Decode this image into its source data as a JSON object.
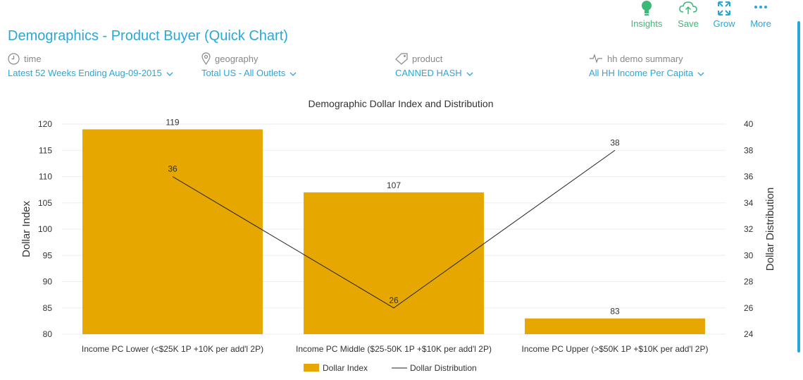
{
  "page": {
    "title": "Demographics - Product Buyer (Quick Chart)"
  },
  "toolbar": {
    "insights_label": "Insights",
    "save_label": "Save",
    "grow_label": "Grow",
    "more_label": "More"
  },
  "filters": {
    "time": {
      "caption": "time",
      "value": "Latest 52 Weeks Ending Aug-09-2015"
    },
    "geography": {
      "caption": "geography",
      "value": "Total US - All Outlets"
    },
    "product": {
      "caption": "product",
      "value": "CANNED HASH"
    },
    "demo": {
      "caption": "hh demo summary",
      "value": "All HH Income Per Capita"
    }
  },
  "colors": {
    "accent": "#29a8d8",
    "bar": "#e6a800",
    "line": "#222222",
    "toolbar_green": "#3cb878"
  },
  "chart_data": {
    "type": "bar",
    "title": "Demographic Dollar Index and Distribution",
    "categories": [
      "Income PC Lower (<$25K 1P +10K per add'l 2P)",
      "Income PC Middle ($25-50K 1P +$10K per add'l 2P)",
      "Income PC Upper (>$50K 1P +$10K per add'l 2P)"
    ],
    "series": [
      {
        "name": "Dollar Index",
        "type": "bar",
        "axis": "left",
        "values": [
          119,
          107,
          83
        ]
      },
      {
        "name": "Dollar Distribution",
        "type": "line",
        "axis": "right",
        "values": [
          36,
          26,
          38
        ]
      }
    ],
    "ylabel": "Dollar Index",
    "y2label": "Dollar Distribution",
    "ylim": [
      80,
      120
    ],
    "y2lim": [
      24,
      40
    ],
    "yticks": [
      80,
      85,
      90,
      95,
      100,
      105,
      110,
      115,
      120
    ],
    "y2ticks": [
      24,
      26,
      28,
      30,
      32,
      34,
      36,
      38,
      40
    ],
    "legend_position": "bottom-center",
    "grid": true
  }
}
